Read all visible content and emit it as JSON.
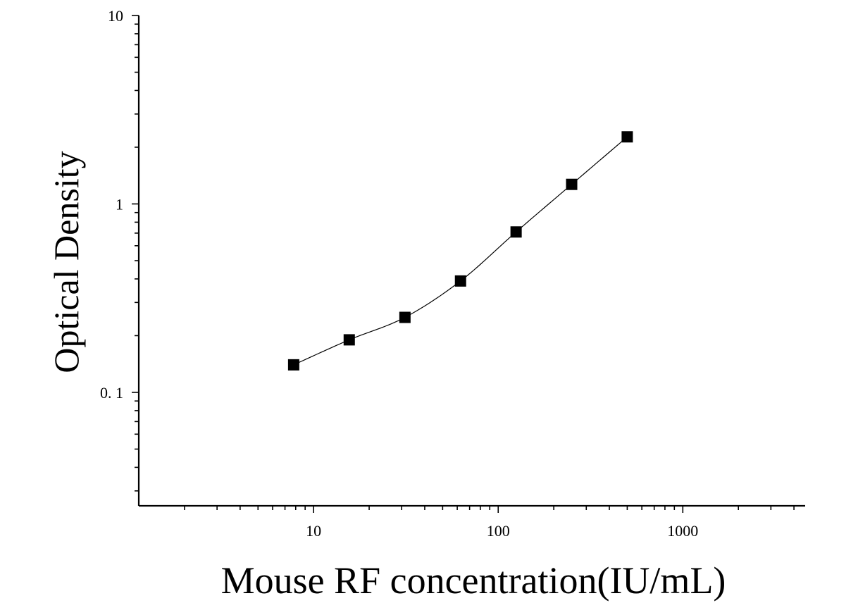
{
  "chart_data": {
    "type": "scatter",
    "title": "",
    "xlabel": "Mouse RF concentration(IU/mL)",
    "ylabel": "Optical Density",
    "x_scale": "log",
    "y_scale": "log",
    "xlim": [
      1.13,
      4600
    ],
    "ylim": [
      0.025,
      10
    ],
    "x_ticks": [
      {
        "value": 10,
        "label": "10"
      },
      {
        "value": 100,
        "label": "100"
      },
      {
        "value": 1000,
        "label": "1000"
      }
    ],
    "y_ticks": [
      {
        "value": 0.1,
        "label": "0. 1"
      },
      {
        "value": 1,
        "label": "1"
      },
      {
        "value": 10,
        "label": "10"
      }
    ],
    "grid": false,
    "legend": "none",
    "marker": "square",
    "colors": {
      "marker": "#000000",
      "curve": "#000000",
      "axis": "#000000"
    },
    "series": [
      {
        "x": [
          7.8,
          15.6,
          31.25,
          62.5,
          125,
          250,
          500
        ],
        "y": [
          0.14,
          0.19,
          0.25,
          0.39,
          0.71,
          1.27,
          2.27
        ]
      }
    ],
    "fit_curve": true
  }
}
